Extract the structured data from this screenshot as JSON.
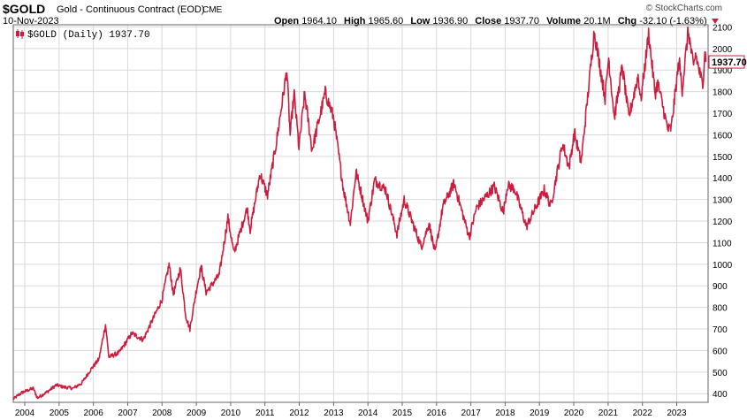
{
  "header": {
    "ticker": "$GOLD",
    "title": "Gold - Continuous Contract (EOD)",
    "exchange": "CME",
    "date": "10-Nov-2023",
    "watermark": "© StockCharts.com",
    "stats": {
      "open_label": "Open",
      "open": "1964.10",
      "high_label": "High",
      "high": "1965.60",
      "low_label": "Low",
      "low": "1936.90",
      "close_label": "Close",
      "close": "1937.70",
      "volume_label": "Volume",
      "volume": "20.1M",
      "chg_label": "Chg",
      "chg": "-32.10 (-1.63%)"
    }
  },
  "legend": {
    "label": "$GOLD (Daily) 1937.70",
    "icon": "candle-legend-icon"
  },
  "colors": {
    "series": "#cc1d3e",
    "grid": "#d9d9d9",
    "frame": "#666666",
    "last_price_bg": "#ffffff"
  },
  "chart_data": {
    "type": "line",
    "title": "Gold - Continuous Contract (EOD)",
    "xlabel": "",
    "ylabel": "",
    "ylim": [
      360,
      2110
    ],
    "xlim": [
      "2003-09-01",
      "2023-12-01"
    ],
    "y_ticks": [
      400,
      500,
      600,
      700,
      800,
      900,
      1000,
      1100,
      1200,
      1300,
      1400,
      1500,
      1600,
      1700,
      1800,
      1900,
      2000,
      2100
    ],
    "x_ticks": [
      "2004",
      "2005",
      "2006",
      "2007",
      "2008",
      "2009",
      "2010",
      "2011",
      "2012",
      "2013",
      "2014",
      "2015",
      "2016",
      "2017",
      "2018",
      "2019",
      "2020",
      "2021",
      "2022",
      "2023"
    ],
    "grid": true,
    "legend_position": "top-left",
    "last_price": "1937.70",
    "series": [
      {
        "name": "$GOLD (Daily)",
        "points": [
          [
            "2003-09-01",
            375
          ],
          [
            "2003-12-01",
            405
          ],
          [
            "2004-04-01",
            425
          ],
          [
            "2004-05-15",
            380
          ],
          [
            "2004-09-01",
            410
          ],
          [
            "2004-12-01",
            440
          ],
          [
            "2005-03-01",
            430
          ],
          [
            "2005-06-01",
            425
          ],
          [
            "2005-09-01",
            450
          ],
          [
            "2005-12-01",
            510
          ],
          [
            "2006-03-01",
            560
          ],
          [
            "2006-05-10",
            720
          ],
          [
            "2006-06-15",
            570
          ],
          [
            "2006-10-01",
            590
          ],
          [
            "2007-02-15",
            680
          ],
          [
            "2007-06-15",
            650
          ],
          [
            "2007-10-01",
            750
          ],
          [
            "2007-12-31",
            835
          ],
          [
            "2008-03-17",
            1000
          ],
          [
            "2008-05-01",
            860
          ],
          [
            "2008-07-15",
            980
          ],
          [
            "2008-09-10",
            760
          ],
          [
            "2008-10-24",
            700
          ],
          [
            "2009-01-01",
            880
          ],
          [
            "2009-02-20",
            990
          ],
          [
            "2009-04-15",
            870
          ],
          [
            "2009-09-01",
            950
          ],
          [
            "2009-12-03",
            1215
          ],
          [
            "2010-02-05",
            1050
          ],
          [
            "2010-06-25",
            1260
          ],
          [
            "2010-07-28",
            1160
          ],
          [
            "2010-11-09",
            1420
          ],
          [
            "2011-01-28",
            1320
          ],
          [
            "2011-05-01",
            1560
          ],
          [
            "2011-08-22",
            1900
          ],
          [
            "2011-09-26",
            1600
          ],
          [
            "2011-11-08",
            1790
          ],
          [
            "2011-12-29",
            1540
          ],
          [
            "2012-02-28",
            1790
          ],
          [
            "2012-05-16",
            1530
          ],
          [
            "2012-10-04",
            1795
          ],
          [
            "2013-01-01",
            1680
          ],
          [
            "2013-04-15",
            1350
          ],
          [
            "2013-06-28",
            1190
          ],
          [
            "2013-08-28",
            1430
          ],
          [
            "2013-12-31",
            1200
          ],
          [
            "2014-03-14",
            1390
          ],
          [
            "2014-07-10",
            1345
          ],
          [
            "2014-11-06",
            1140
          ],
          [
            "2015-01-22",
            1300
          ],
          [
            "2015-07-24",
            1080
          ],
          [
            "2015-10-14",
            1190
          ],
          [
            "2015-12-17",
            1050
          ],
          [
            "2016-03-10",
            1270
          ],
          [
            "2016-07-06",
            1375
          ],
          [
            "2016-12-15",
            1125
          ],
          [
            "2017-02-28",
            1260
          ],
          [
            "2017-09-08",
            1360
          ],
          [
            "2017-12-12",
            1240
          ],
          [
            "2018-01-25",
            1365
          ],
          [
            "2018-04-11",
            1350
          ],
          [
            "2018-08-16",
            1175
          ],
          [
            "2019-02-20",
            1345
          ],
          [
            "2019-05-02",
            1270
          ],
          [
            "2019-09-04",
            1560
          ],
          [
            "2019-11-12",
            1450
          ],
          [
            "2020-01-08",
            1610
          ],
          [
            "2020-03-19",
            1470
          ],
          [
            "2020-08-06",
            2080
          ],
          [
            "2020-11-30",
            1770
          ],
          [
            "2021-01-06",
            1960
          ],
          [
            "2021-03-08",
            1680
          ],
          [
            "2021-06-01",
            1915
          ],
          [
            "2021-08-09",
            1680
          ],
          [
            "2021-11-16",
            1875
          ],
          [
            "2021-12-15",
            1760
          ],
          [
            "2022-03-08",
            2070
          ],
          [
            "2022-05-16",
            1790
          ],
          [
            "2022-06-13",
            1840
          ],
          [
            "2022-09-28",
            1625
          ],
          [
            "2022-11-03",
            1630
          ],
          [
            "2023-01-26",
            1945
          ],
          [
            "2023-02-28",
            1810
          ],
          [
            "2023-05-04",
            2085
          ],
          [
            "2023-06-29",
            1910
          ],
          [
            "2023-07-20",
            1975
          ],
          [
            "2023-10-05",
            1825
          ],
          [
            "2023-10-27",
            2000
          ],
          [
            "2023-11-10",
            1937.7
          ]
        ]
      }
    ]
  }
}
